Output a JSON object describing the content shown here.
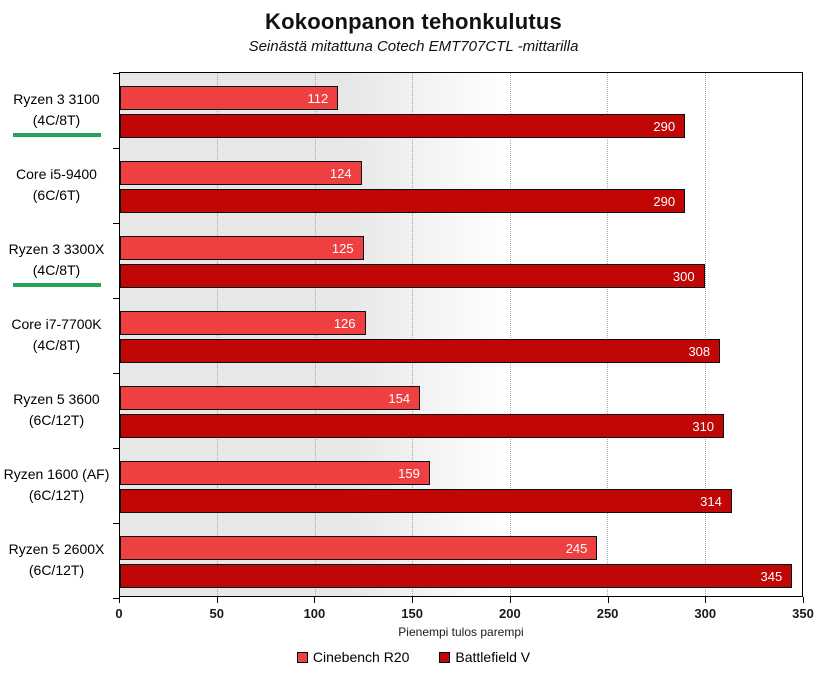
{
  "title": "Kokoonpanon tehonkulutus",
  "subtitle": "Seinästä mitattuna Cotech EMT707CTL -mittarilla",
  "chart_data": {
    "type": "bar",
    "orientation": "horizontal",
    "title": "Kokoonpanon tehonkulutus",
    "subtitle": "Seinästä mitattuna Cotech EMT707CTL -mittarilla",
    "xlabel": "Pienempi tulos parempi",
    "xlim": [
      0,
      350
    ],
    "xticks": [
      0,
      50,
      100,
      150,
      200,
      250,
      300,
      350
    ],
    "grid": "vertical-dotted",
    "legend_position": "bottom",
    "value_label_color": "#ffffff",
    "highlight_color": "#22a45c",
    "categories": [
      {
        "name": "Ryzen 3 3100",
        "sub": "(4C/8T)",
        "highlighted": true
      },
      {
        "name": "Core i5-9400",
        "sub": "(6C/6T)",
        "highlighted": false
      },
      {
        "name": "Ryzen 3 3300X",
        "sub": "(4C/8T)",
        "highlighted": true
      },
      {
        "name": "Core i7-7700K",
        "sub": "(4C/8T)",
        "highlighted": false
      },
      {
        "name": "Ryzen 5 3600",
        "sub": "(6C/12T)",
        "highlighted": false
      },
      {
        "name": "Ryzen 1600 (AF)",
        "sub": "(6C/12T)",
        "highlighted": false
      },
      {
        "name": "Ryzen 5 2600X",
        "sub": "(6C/12T)",
        "highlighted": false
      }
    ],
    "series": [
      {
        "name": "Cinebench R20",
        "color": "#ee4040",
        "values": [
          112,
          124,
          125,
          126,
          154,
          159,
          245
        ]
      },
      {
        "name": "Battlefield V",
        "color": "#c10606",
        "values": [
          290,
          290,
          300,
          308,
          310,
          314,
          345
        ]
      }
    ]
  }
}
